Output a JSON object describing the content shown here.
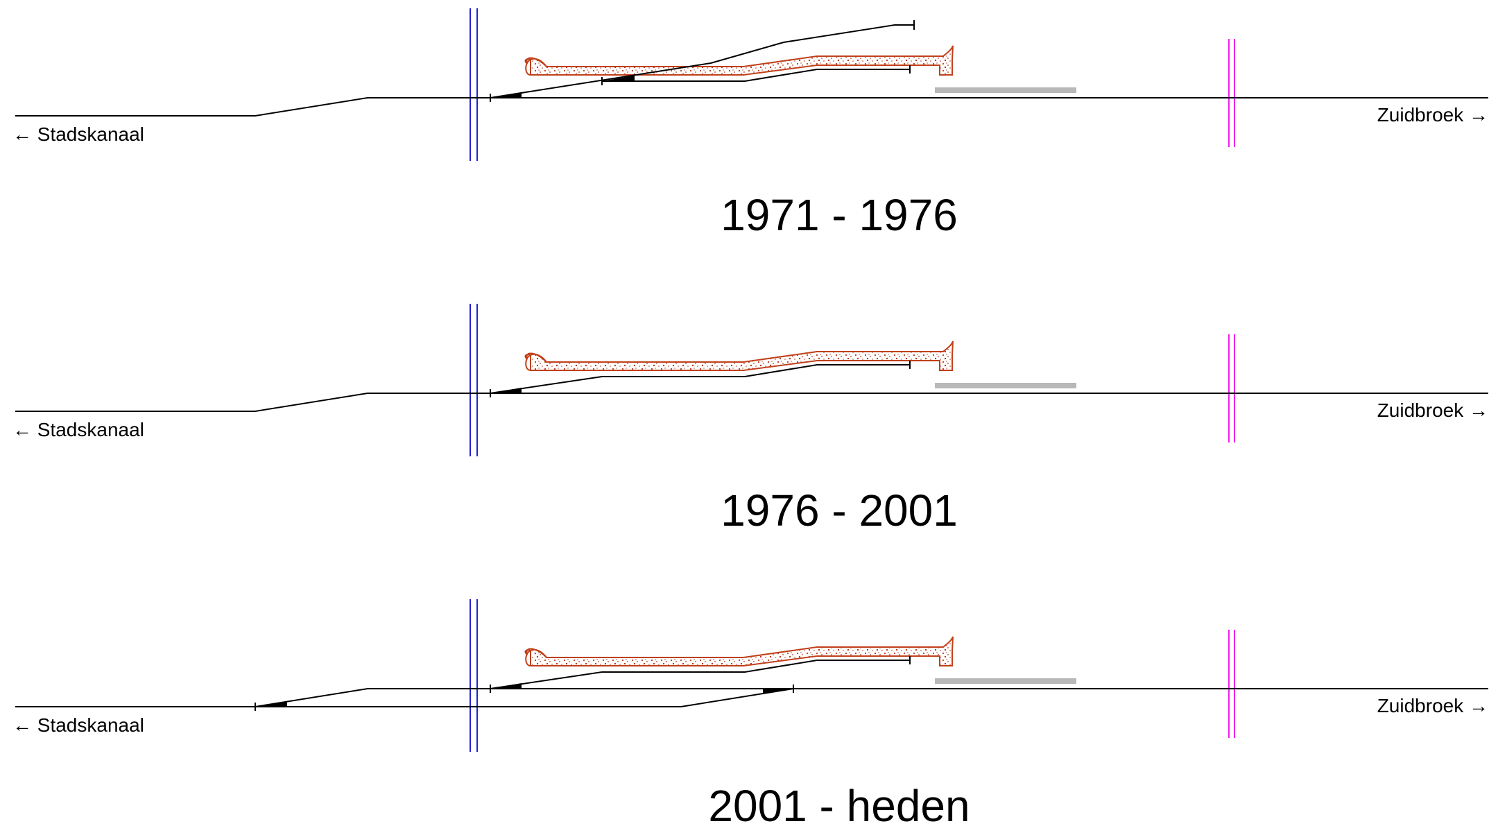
{
  "labels": {
    "left_direction": "← Stadskanaal",
    "right_direction": "Zuidbroek →"
  },
  "panels": [
    {
      "period": "1971 - 1976"
    },
    {
      "period": "1976 - 2001"
    },
    {
      "period": "2001 - heden"
    }
  ],
  "colors": {
    "track": "#000000",
    "blue_marker": "#2222cc",
    "magenta_marker": "#ee22ee",
    "platform_outline": "#c0401a",
    "platform_speckle": "#b83a1a",
    "grey_bar": "#b8b8b8"
  }
}
